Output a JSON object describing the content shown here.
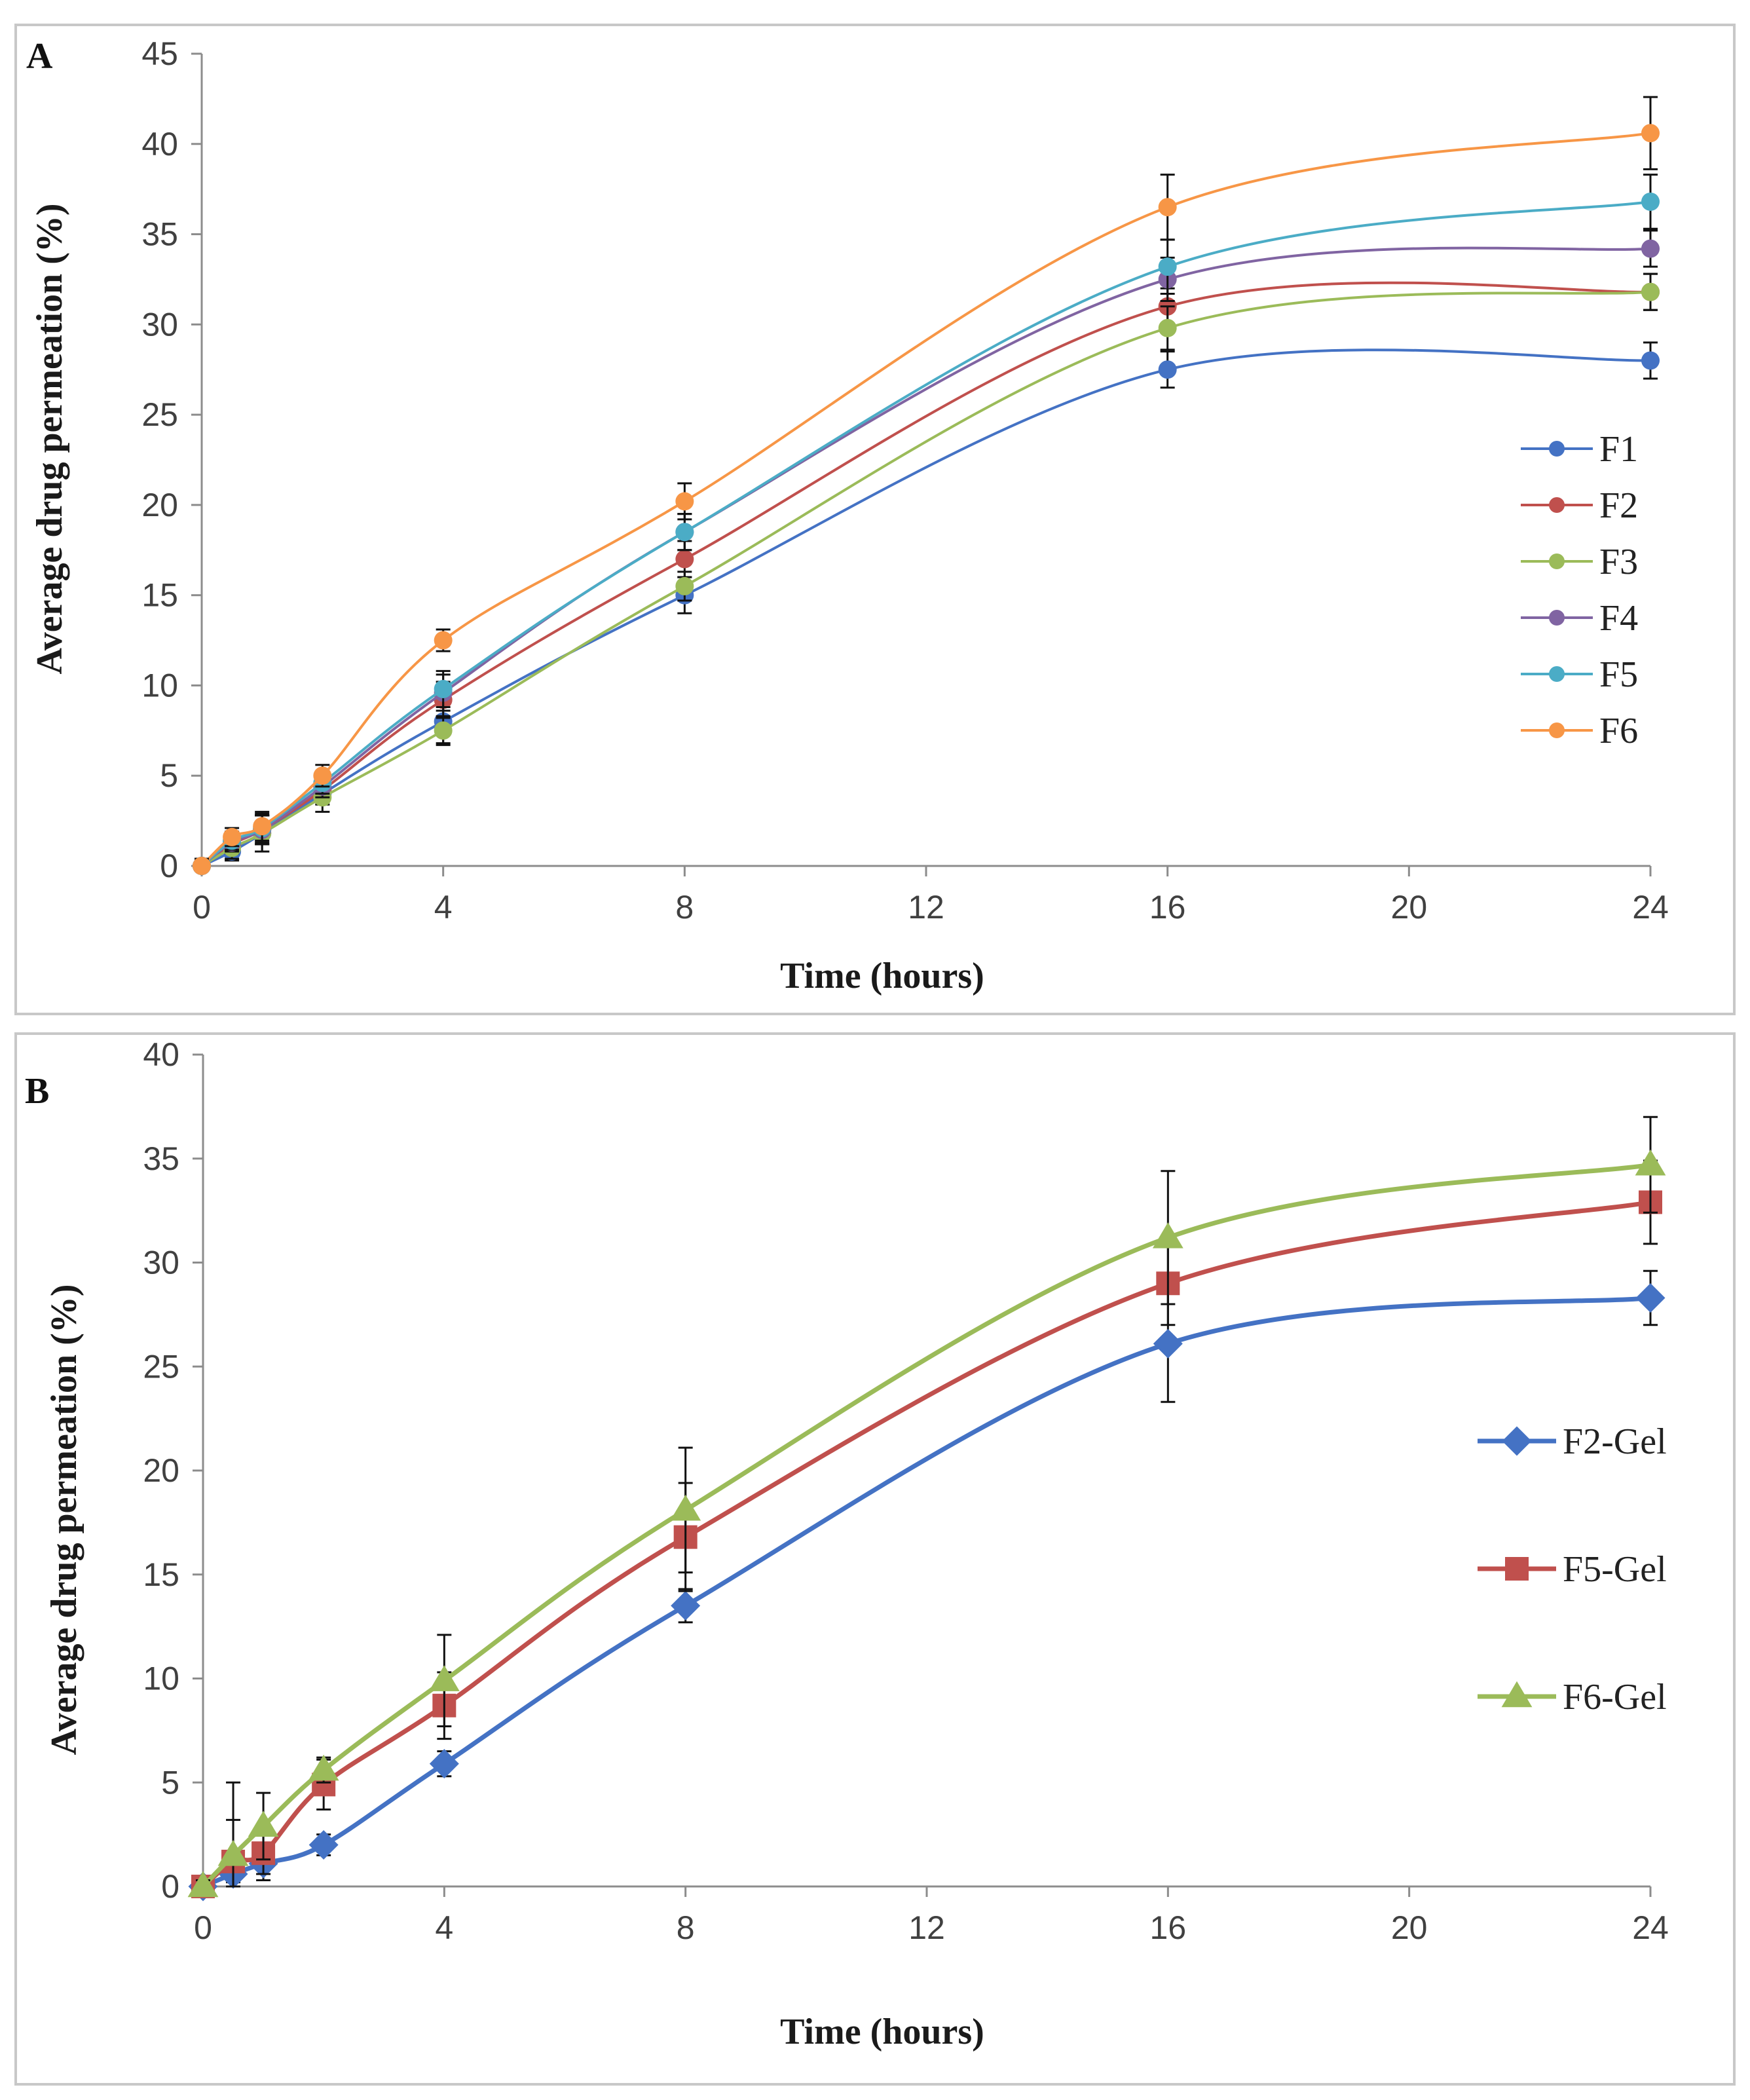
{
  "chart_data": [
    {
      "panel_label": "A",
      "type": "line",
      "xlabel": "Time (hours)",
      "ylabel": "Average drug permeation  (%)",
      "x": [
        0,
        0.5,
        1,
        2,
        4,
        8,
        16,
        24
      ],
      "xlim": [
        0,
        24
      ],
      "ylim": [
        0,
        45
      ],
      "xticks": [
        "0",
        "4",
        "8",
        "12",
        "16",
        "20",
        "24"
      ],
      "yticks": [
        "0",
        "5",
        "10",
        "15",
        "20",
        "25",
        "30",
        "35",
        "40",
        "45"
      ],
      "legend_position": "right",
      "series": [
        {
          "name": "F1",
          "color": "#4472C4",
          "marker": "circle",
          "values": [
            0,
            0.8,
            1.8,
            4.0,
            8.0,
            15.0,
            27.5,
            28.0
          ],
          "errors": [
            0.4,
            0.5,
            1.0,
            0.6,
            1.2,
            1.0,
            1.0,
            1.0
          ]
        },
        {
          "name": "F2",
          "color": "#C0504D",
          "marker": "circle",
          "values": [
            0,
            1.2,
            2.0,
            4.2,
            9.2,
            17.0,
            31.0,
            31.8
          ],
          "errors": [
            0.4,
            0.5,
            0.8,
            0.6,
            1.0,
            1.0,
            1.0,
            1.0
          ]
        },
        {
          "name": "F3",
          "color": "#9BBB59",
          "marker": "circle",
          "values": [
            0,
            1.0,
            1.8,
            3.8,
            7.5,
            15.5,
            29.8,
            31.8
          ],
          "errors": [
            0.4,
            0.6,
            1.0,
            0.8,
            0.8,
            0.8,
            1.2,
            1.0
          ]
        },
        {
          "name": "F4",
          "color": "#8064A2",
          "marker": "circle",
          "values": [
            0,
            1.3,
            2.0,
            4.4,
            9.6,
            18.5,
            32.5,
            34.2
          ],
          "errors": [
            0.4,
            0.5,
            0.8,
            0.6,
            1.0,
            1.0,
            1.2,
            1.0
          ]
        },
        {
          "name": "F5",
          "color": "#4BACC6",
          "marker": "circle",
          "values": [
            0,
            1.4,
            2.1,
            4.6,
            9.8,
            18.5,
            33.2,
            36.8
          ],
          "errors": [
            0.4,
            0.5,
            0.8,
            0.6,
            1.0,
            1.0,
            1.5,
            1.5
          ]
        },
        {
          "name": "F6",
          "color": "#F79646",
          "marker": "circle",
          "values": [
            0,
            1.6,
            2.2,
            5.0,
            12.5,
            20.2,
            36.5,
            40.6
          ],
          "errors": [
            0.4,
            0.5,
            0.8,
            0.6,
            0.6,
            1.0,
            1.8,
            2.0
          ]
        }
      ]
    },
    {
      "panel_label": "B",
      "type": "line",
      "xlabel": "Time (hours)",
      "ylabel": "Average drug permeation   (%)",
      "x": [
        0,
        0.5,
        1,
        2,
        4,
        8,
        16,
        24
      ],
      "xlim": [
        0,
        24
      ],
      "ylim": [
        0,
        40
      ],
      "xticks": [
        "0",
        "4",
        "8",
        "12",
        "16",
        "20",
        "24"
      ],
      "yticks": [
        "0",
        "5",
        "10",
        "15",
        "20",
        "25",
        "30",
        "35",
        "40"
      ],
      "legend_position": "right",
      "series": [
        {
          "name": "F2-Gel",
          "color": "#4472C4",
          "marker": "diamond",
          "values": [
            0,
            0.6,
            1.1,
            2.0,
            5.9,
            13.5,
            26.1,
            28.3
          ],
          "errors": [
            0.3,
            0.4,
            0.8,
            0.5,
            0.6,
            0.8,
            2.8,
            1.3
          ]
        },
        {
          "name": "F5-Gel",
          "color": "#C0504D",
          "marker": "square",
          "values": [
            0,
            1.2,
            1.6,
            4.9,
            8.7,
            16.8,
            29.0,
            32.9
          ],
          "errors": [
            0.3,
            2.0,
            1.0,
            1.2,
            1.6,
            2.6,
            2.0,
            2.0
          ]
        },
        {
          "name": "F6-Gel",
          "color": "#9BBB59",
          "marker": "triangle",
          "values": [
            0,
            1.5,
            2.9,
            5.6,
            9.9,
            18.1,
            31.2,
            34.7
          ],
          "errors": [
            0.3,
            3.5,
            1.6,
            0.6,
            2.2,
            3.0,
            3.2,
            2.3
          ]
        }
      ]
    }
  ]
}
